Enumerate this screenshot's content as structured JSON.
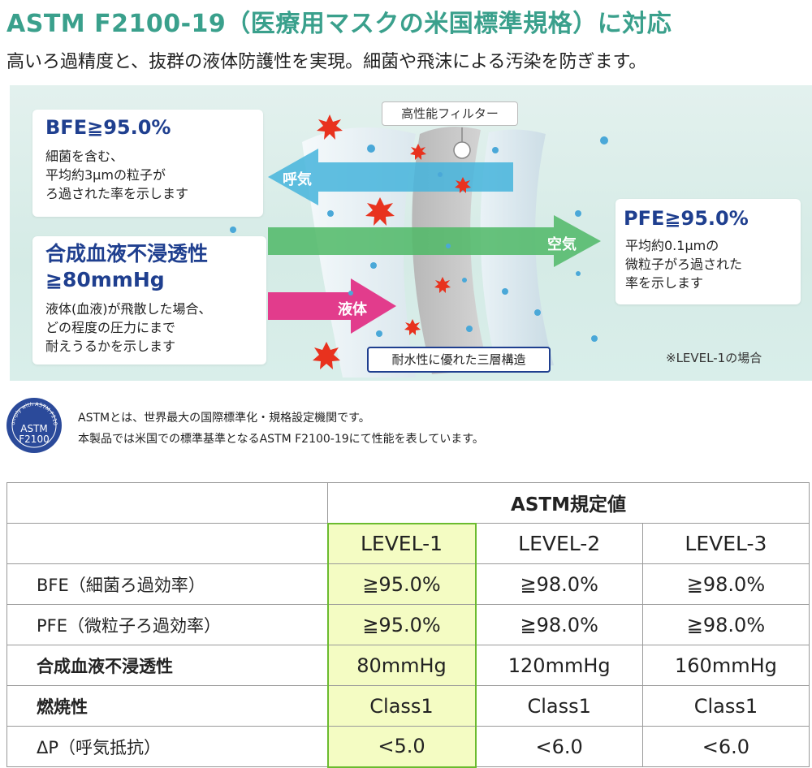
{
  "header": {
    "title": "ASTM F2100-19（医療用マスクの米国標準規格）に対応",
    "subtitle": "高いろ過精度と、抜群の液体防護性を実現。細菌や飛沫による汚染を防ぎます。"
  },
  "diagram": {
    "bfe": {
      "heading": "BFE≧95.0%",
      "body": "細菌を含む、\n平均約3μmの粒子が\nろ過された率を示します"
    },
    "liquid": {
      "heading": "合成血液不浸透性\n≧80mmHg",
      "body": "液体(血液)が飛散した場合、\nどの程度の圧力にまで\n耐えうるかを示します"
    },
    "pfe": {
      "heading": "PFE≧95.0%",
      "body": "平均約0.1μmの\n微粒子がろ過された\n率を示します"
    },
    "filter_label": "高性能フィルター",
    "layer_label": "耐水性に優れた三層構造",
    "level_note": "※LEVEL-1の場合",
    "arrows": {
      "exhale": "呼気",
      "air": "空気",
      "liquid": "液体"
    },
    "colors": {
      "exhale_arrow": "#45b4dc",
      "air_arrow": "#4fb866",
      "liquid_arrow": "#e23c8c",
      "heading": "#1f3f8f"
    }
  },
  "astm": {
    "logo_ring": "Comply with ASTM F2100",
    "logo_line1": "ASTM",
    "logo_line2": "F2100",
    "line1": "ASTMとは、世界最大の国際標準化・規格設定機関です。",
    "line2": "本製品では米国での標準基準となるASTM F2100-19にて性能を表しています。"
  },
  "table": {
    "group_header": "ASTM規定値",
    "levels": [
      "LEVEL-1",
      "LEVEL-2",
      "LEVEL-3"
    ],
    "rows": [
      {
        "label": "BFE",
        "note": "（細菌ろ過効率）",
        "bold": false,
        "values": [
          "≧95.0%",
          "≧98.0%",
          "≧98.0%"
        ]
      },
      {
        "label": "PFE",
        "note": "（微粒子ろ過効率）",
        "bold": false,
        "values": [
          "≧95.0%",
          "≧98.0%",
          "≧98.0%"
        ]
      },
      {
        "label": "合成血液不浸透性",
        "note": "",
        "bold": true,
        "values": [
          "80mmHg",
          "120mmHg",
          "160mmHg"
        ]
      },
      {
        "label": "燃焼性",
        "note": "",
        "bold": true,
        "values": [
          "Class1",
          "Class1",
          "Class1"
        ]
      },
      {
        "label": "ΔP",
        "note": "（呼気抵抗）",
        "bold": false,
        "values": [
          "<5.0",
          "<6.0",
          "<6.0"
        ]
      }
    ],
    "highlight_color": "#f4fcc3",
    "highlight_border": "#6bbb2f"
  }
}
